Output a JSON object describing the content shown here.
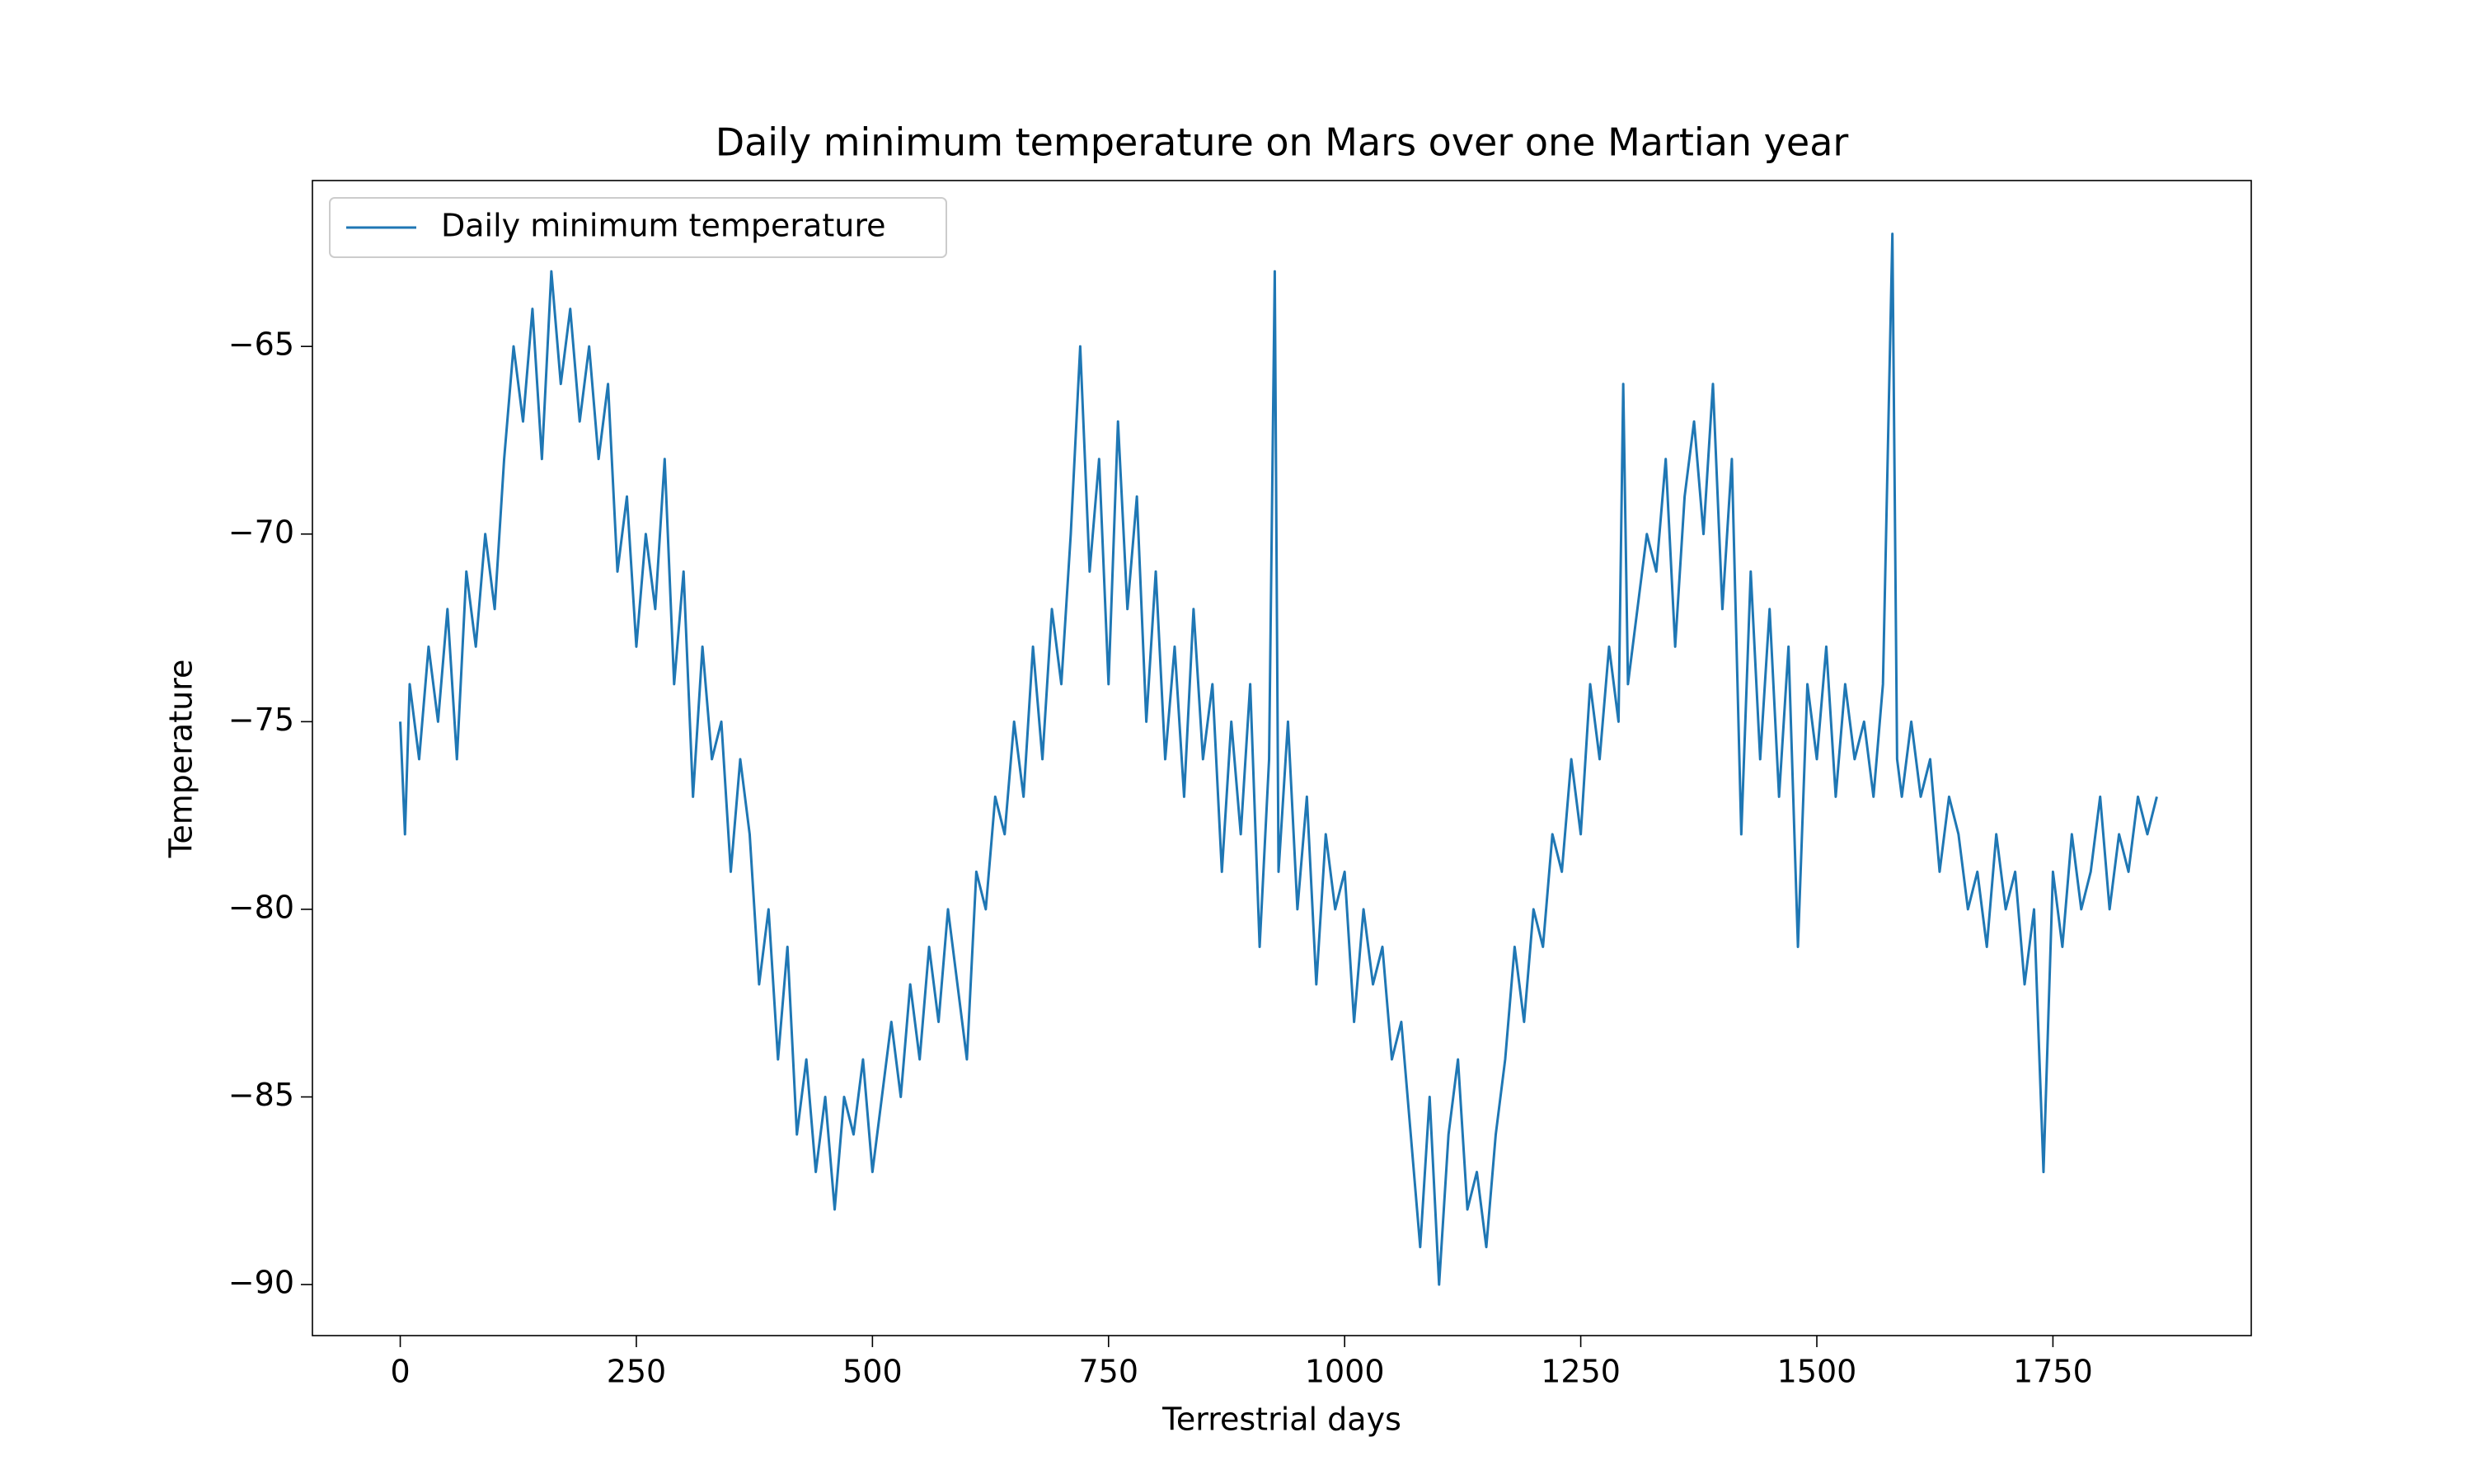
{
  "chart_data": {
    "type": "line",
    "title": "Daily minimum temperature on Mars over one Martian year",
    "x_label": "Terrestrial days",
    "y_label": "Temperature",
    "x": [
      0,
      5,
      10,
      20,
      30,
      40,
      50,
      60,
      70,
      80,
      90,
      100,
      110,
      120,
      130,
      140,
      150,
      160,
      170,
      180,
      190,
      200,
      210,
      220,
      230,
      240,
      250,
      260,
      270,
      280,
      290,
      300,
      310,
      320,
      330,
      340,
      350,
      360,
      370,
      380,
      390,
      400,
      410,
      420,
      430,
      440,
      450,
      460,
      470,
      480,
      490,
      500,
      510,
      520,
      530,
      540,
      550,
      560,
      570,
      580,
      590,
      600,
      610,
      620,
      630,
      640,
      650,
      660,
      670,
      680,
      690,
      700,
      710,
      720,
      730,
      740,
      750,
      760,
      770,
      780,
      790,
      800,
      810,
      820,
      830,
      840,
      850,
      860,
      870,
      880,
      890,
      900,
      910,
      920,
      926,
      930,
      940,
      950,
      960,
      970,
      980,
      990,
      1000,
      1010,
      1020,
      1030,
      1040,
      1050,
      1060,
      1070,
      1080,
      1090,
      1100,
      1110,
      1120,
      1130,
      1140,
      1150,
      1160,
      1170,
      1180,
      1190,
      1200,
      1210,
      1220,
      1230,
      1240,
      1250,
      1260,
      1270,
      1280,
      1290,
      1295,
      1300,
      1310,
      1320,
      1330,
      1340,
      1350,
      1360,
      1370,
      1380,
      1390,
      1400,
      1410,
      1420,
      1430,
      1440,
      1450,
      1460,
      1470,
      1480,
      1490,
      1500,
      1510,
      1520,
      1530,
      1540,
      1550,
      1560,
      1570,
      1580,
      1585,
      1590,
      1600,
      1610,
      1620,
      1630,
      1640,
      1650,
      1660,
      1670,
      1680,
      1690,
      1700,
      1710,
      1720,
      1730,
      1740,
      1750,
      1760,
      1770,
      1780,
      1790,
      1800,
      1810,
      1820,
      1830,
      1840,
      1850,
      1860
    ],
    "series": [
      {
        "name": "Daily minimum temperature",
        "color": "#1f77b4",
        "values": [
          -75,
          -78,
          -74,
          -76,
          -73,
          -75,
          -72,
          -76,
          -71,
          -73,
          -70,
          -72,
          -68,
          -65,
          -67,
          -64,
          -68,
          -63,
          -66,
          -64,
          -67,
          -65,
          -68,
          -66,
          -71,
          -69,
          -73,
          -70,
          -72,
          -68,
          -74,
          -71,
          -77,
          -73,
          -76,
          -75,
          -79,
          -76,
          -78,
          -82,
          -80,
          -84,
          -81,
          -86,
          -84,
          -87,
          -85,
          -88,
          -85,
          -86,
          -84,
          -87,
          -85,
          -83,
          -85,
          -82,
          -84,
          -81,
          -83,
          -80,
          -82,
          -84,
          -79,
          -80,
          -77,
          -78,
          -75,
          -77,
          -73,
          -76,
          -72,
          -74,
          -70,
          -65,
          -71,
          -68,
          -74,
          -67,
          -72,
          -69,
          -75,
          -71,
          -76,
          -73,
          -77,
          -72,
          -76,
          -74,
          -79,
          -75,
          -78,
          -74,
          -81,
          -76,
          -63,
          -79,
          -75,
          -80,
          -77,
          -82,
          -78,
          -80,
          -79,
          -83,
          -80,
          -82,
          -81,
          -84,
          -83,
          -86,
          -89,
          -85,
          -90,
          -86,
          -84,
          -88,
          -87,
          -89,
          -86,
          -84,
          -81,
          -83,
          -80,
          -81,
          -78,
          -79,
          -76,
          -78,
          -74,
          -76,
          -73,
          -75,
          -66,
          -74,
          -72,
          -70,
          -71,
          -68,
          -73,
          -69,
          -67,
          -70,
          -66,
          -72,
          -68,
          -78,
          -71,
          -76,
          -72,
          -77,
          -73,
          -81,
          -74,
          -76,
          -73,
          -77,
          -74,
          -76,
          -75,
          -77,
          -74,
          -62,
          -76,
          -77,
          -75,
          -77,
          -76,
          -79,
          -77,
          -78,
          -80,
          -79,
          -81,
          -78,
          -80,
          -79,
          -82,
          -80,
          -87,
          -79,
          -81,
          -78,
          -80,
          -79,
          -77,
          -80,
          -78,
          -79,
          -77,
          -78,
          -77
        ]
      }
    ],
    "xlim": [
      -93,
      1960
    ],
    "ylim": [
      -91.36,
      -60.58
    ],
    "xticks": [
      0,
      250,
      500,
      750,
      1000,
      1250,
      1500,
      1750
    ],
    "yticks": [
      {
        "value": -90,
        "label": "−90"
      },
      {
        "value": -85,
        "label": "−85"
      },
      {
        "value": -80,
        "label": "−80"
      },
      {
        "value": -75,
        "label": "−75"
      },
      {
        "value": -70,
        "label": "−70"
      },
      {
        "value": -65,
        "label": "−65"
      }
    ],
    "grid": false,
    "legend": "upper left"
  }
}
